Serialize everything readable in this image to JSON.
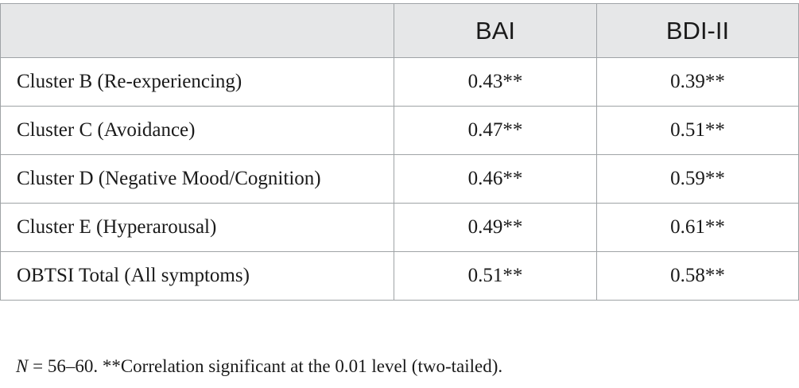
{
  "table": {
    "headers": [
      "",
      "BAI",
      "BDI-II"
    ],
    "rows": [
      {
        "label": "Cluster B (Re-experiencing)",
        "bai": "0.43**",
        "bdi": "0.39**"
      },
      {
        "label": "Cluster C (Avoidance)",
        "bai": "0.47**",
        "bdi": "0.51**"
      },
      {
        "label": "Cluster D (Negative Mood/Cognition)",
        "bai": "0.46**",
        "bdi": "0.59**"
      },
      {
        "label": "Cluster E (Hyperarousal)",
        "bai": "0.49**",
        "bdi": "0.61**"
      },
      {
        "label": "OBTSI Total (All symptoms)",
        "bai": "0.51**",
        "bdi": "0.58**"
      }
    ]
  },
  "footnote": {
    "n_symbol": "N",
    "text": " = 56–60. **Correlation significant at the 0.01 level (two-tailed)."
  },
  "colors": {
    "header_background": "#e6e7e8",
    "border": "#9fa3a6",
    "text": "#1a1a1a"
  }
}
